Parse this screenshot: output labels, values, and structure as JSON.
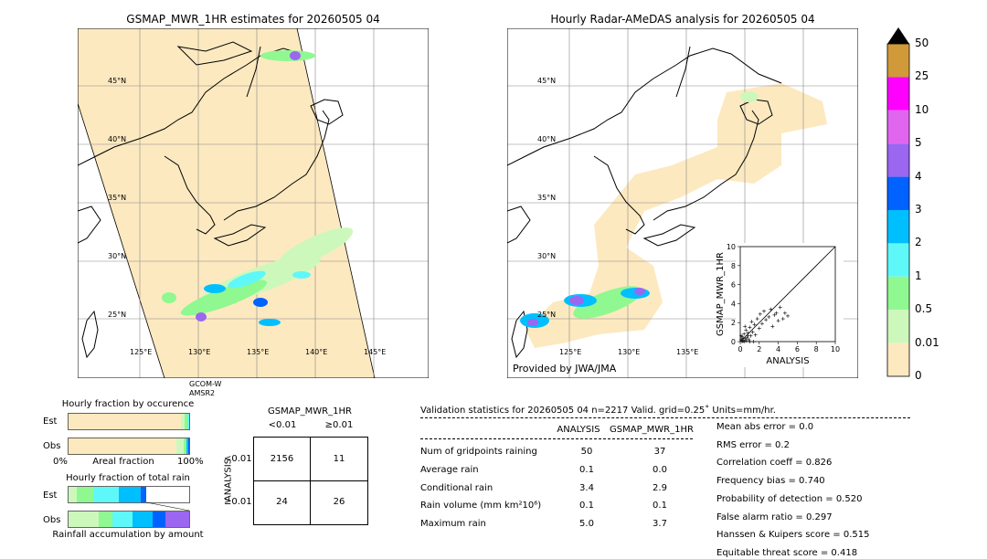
{
  "left_map": {
    "title": "GSMAP_MWR_1HR estimates for 20260505 04",
    "lat_labels": [
      "45°N",
      "40°N",
      "35°N",
      "30°N",
      "25°N"
    ],
    "lon_labels": [
      "125°E",
      "130°E",
      "135°E",
      "140°E",
      "145°E"
    ],
    "satellite_label_1": "GCOM-W",
    "satellite_label_2": "AMSR2"
  },
  "right_map": {
    "title": "Hourly Radar-AMeDAS analysis for 20260505 04",
    "lat_labels": [
      "45°N",
      "40°N",
      "35°N",
      "30°N",
      "25°N"
    ],
    "lon_labels": [
      "125°E",
      "130°E",
      "135°E"
    ],
    "credit": "Provided by JWA/JMA"
  },
  "colorbar": {
    "labels": [
      "50",
      "25",
      "10",
      "5",
      "4",
      "3",
      "2",
      "1",
      "0.5",
      "0.01",
      "0"
    ],
    "colors": [
      "#d09a3a",
      "#ff00ff",
      "#e066f0",
      "#9b66f0",
      "#0062ff",
      "#00bfff",
      "#5ff8f8",
      "#90f890",
      "#cdf8bc",
      "#fde9c0"
    ]
  },
  "fraction_occurrence": {
    "title": "Hourly fraction by occurence",
    "row_est": "Est",
    "row_obs": "Obs",
    "axis_left": "0%",
    "axis_mid": "Areal fraction",
    "axis_right": "100%"
  },
  "fraction_total": {
    "title": "Hourly fraction of total rain",
    "row_est": "Est",
    "row_obs": "Obs",
    "axis_mid": "Rainfall accumulation by amount"
  },
  "contingency": {
    "title": "GSMAP_MWR_1HR",
    "col1": "<0.01",
    "col2": "≥0.01",
    "row_axis": "ANALYSIS",
    "row1": "<0.01",
    "row2": "≥0.01",
    "cells": [
      "2156",
      "11",
      "24",
      "26"
    ]
  },
  "validation": {
    "header": "Validation statistics for 20260505 04  n=2217 Valid. grid=0.25˚ Units=mm/hr.",
    "col_analysis": "ANALYSIS",
    "col_gsmap": "GSMAP_MWR_1HR",
    "rows": [
      {
        "label": "Num of gridpoints raining",
        "analysis": "50",
        "gsmap": "37"
      },
      {
        "label": "Average rain",
        "analysis": "0.1",
        "gsmap": "0.0"
      },
      {
        "label": "Conditional rain",
        "analysis": "3.4",
        "gsmap": "2.9"
      },
      {
        "label": "Rain volume (mm km²10⁶)",
        "analysis": "0.1",
        "gsmap": "0.1"
      },
      {
        "label": "Maximum rain",
        "analysis": "5.0",
        "gsmap": "3.7"
      }
    ],
    "scores": [
      "Mean abs error =    0.0",
      "RMS error =    0.2",
      "Correlation coeff =  0.826",
      "Frequency bias =  0.740",
      "Probability of detection =  0.520",
      "False alarm ratio =  0.297",
      "Hanssen & Kuipers score =  0.515",
      "Equitable threat score =  0.418"
    ]
  },
  "chart_data": {
    "type": "scatter",
    "xlabel": "ANALYSIS",
    "ylabel": "GSMAP_MWR_1HR",
    "xlim": [
      0,
      10
    ],
    "ylim": [
      0,
      10
    ],
    "x_ticks": [
      "0",
      "2",
      "4",
      "6",
      "8",
      "10"
    ],
    "y_ticks": [
      "0",
      "2",
      "4",
      "6",
      "8",
      "10"
    ],
    "points": [
      [
        0.1,
        0.2
      ],
      [
        0.2,
        0.5
      ],
      [
        0.3,
        0.1
      ],
      [
        0.4,
        0.8
      ],
      [
        0.5,
        0.3
      ],
      [
        0.6,
        1.2
      ],
      [
        0.7,
        0.4
      ],
      [
        0.8,
        0.9
      ],
      [
        0.9,
        0.2
      ],
      [
        1.0,
        1.5
      ],
      [
        1.1,
        0.6
      ],
      [
        1.2,
        2.1
      ],
      [
        1.3,
        1.0
      ],
      [
        1.5,
        1.8
      ],
      [
        1.6,
        0.7
      ],
      [
        1.8,
        2.4
      ],
      [
        2.0,
        1.4
      ],
      [
        2.1,
        2.9
      ],
      [
        2.3,
        1.9
      ],
      [
        2.5,
        3.2
      ],
      [
        2.7,
        2.3
      ],
      [
        3.0,
        2.6
      ],
      [
        3.2,
        3.4
      ],
      [
        3.4,
        1.6
      ],
      [
        3.6,
        2.8
      ],
      [
        3.8,
        3.0
      ],
      [
        4.0,
        2.2
      ],
      [
        4.2,
        3.6
      ],
      [
        4.5,
        2.4
      ],
      [
        4.7,
        3.0
      ],
      [
        5.0,
        2.7
      ],
      [
        0.2,
        0.0
      ],
      [
        0.4,
        0.0
      ],
      [
        0.6,
        0.1
      ],
      [
        1.0,
        0.0
      ],
      [
        1.4,
        0.0
      ],
      [
        0.3,
        0.3
      ],
      [
        0.1,
        0.6
      ],
      [
        0.5,
        1.6
      ],
      [
        0.8,
        0.6
      ]
    ]
  }
}
